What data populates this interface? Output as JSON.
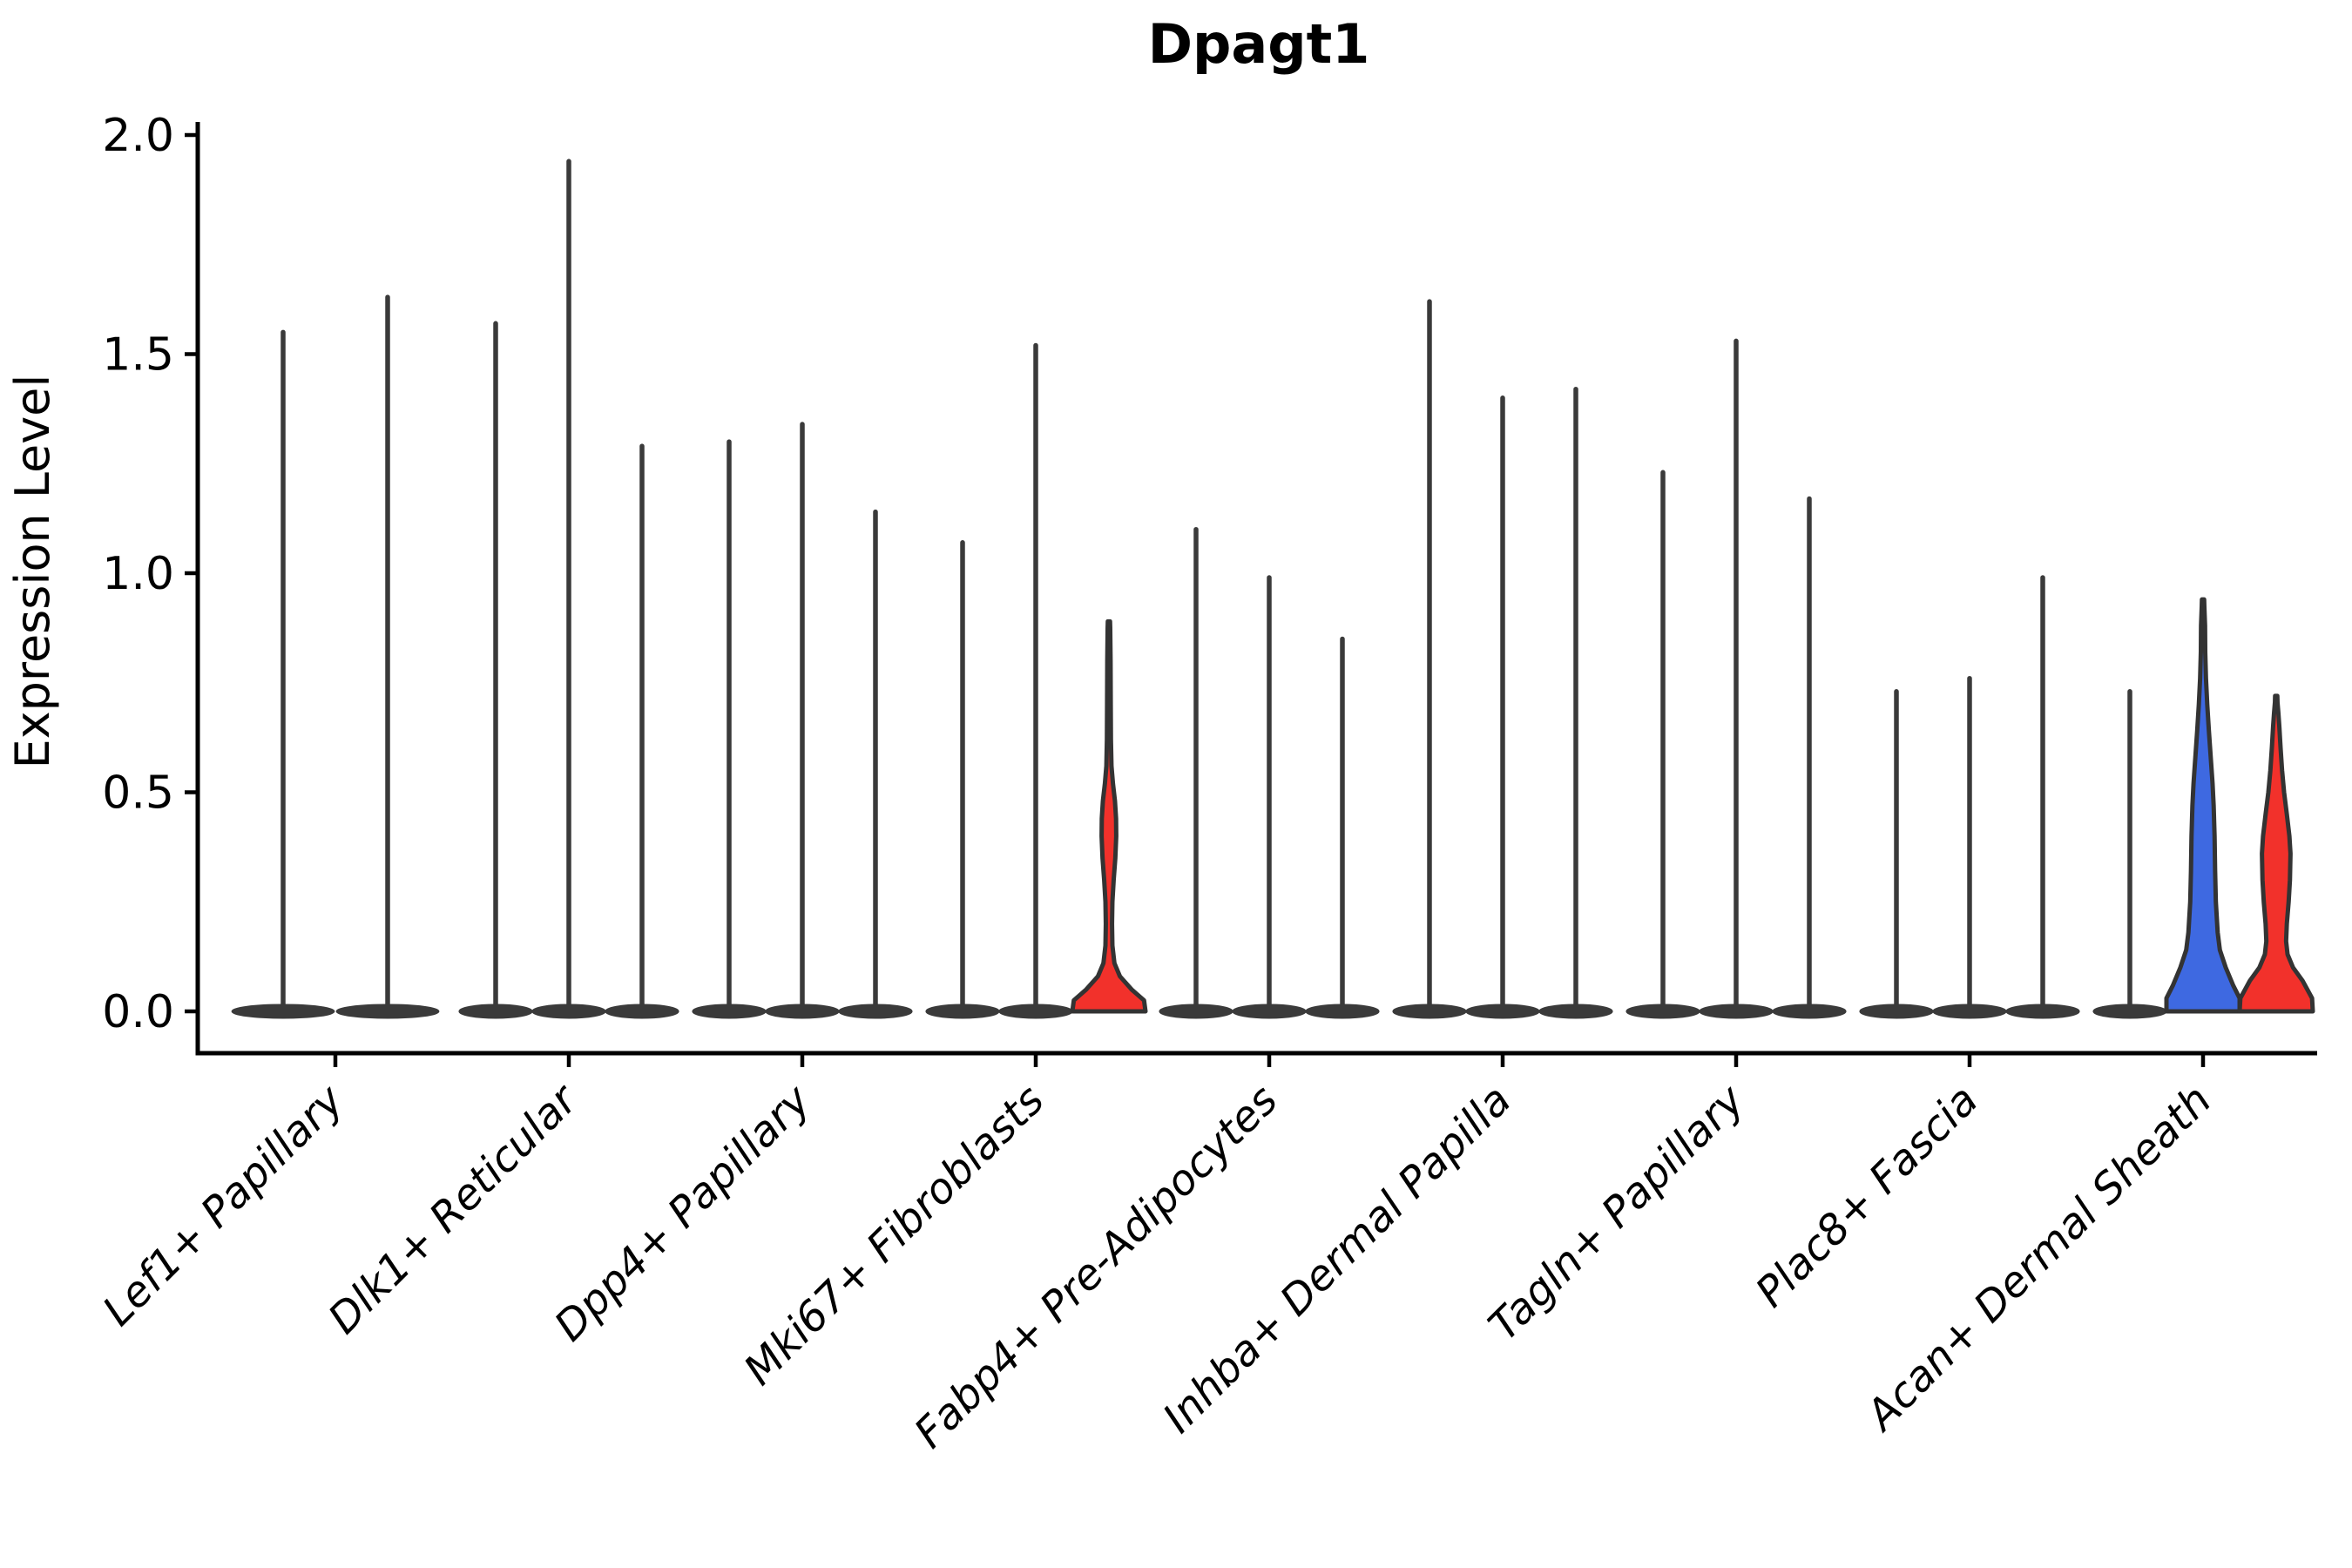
{
  "chart_data": {
    "type": "violin",
    "title": "Dpagt1",
    "ylabel": "Expression Level",
    "xlabel": "",
    "ylim": [
      0,
      2.0
    ],
    "yticks": [
      "0.0",
      "0.5",
      "1.0",
      "1.5",
      "2.0"
    ],
    "ytick_values": [
      0,
      0.5,
      1.0,
      1.5,
      2.0
    ],
    "grid": "off",
    "legend": "none",
    "categories": [
      "Lef1+ Papillary",
      "Dlk1+ Reticular",
      "Dpp4+ Papillary",
      "Mki67+ Fibroblasts",
      "Fabp4+ Pre-Adipocytes",
      "Inhba+ Dermal Papilla",
      "Tagln+ Papillary",
      "Plac8+ Fascia",
      "Acan+ Dermal Sheath"
    ],
    "colors": {
      "needle": "#3a3a3a",
      "edge": "#333333",
      "blue_fill": "#3e69e1",
      "red_fill": "#f2312b",
      "axis": "#000000"
    },
    "groups": [
      {
        "category": "Lef1+ Papillary",
        "violins": [
          {
            "max": 1.55,
            "style": "needle"
          },
          {
            "max": 1.63,
            "style": "needle"
          }
        ]
      },
      {
        "category": "Dlk1+ Reticular",
        "violins": [
          {
            "max": 1.57,
            "style": "needle"
          },
          {
            "max": 1.94,
            "style": "needle"
          },
          {
            "max": 1.29,
            "style": "needle"
          }
        ]
      },
      {
        "category": "Dpp4+ Papillary",
        "violins": [
          {
            "max": 1.3,
            "style": "needle"
          },
          {
            "max": 1.34,
            "style": "needle"
          },
          {
            "max": 1.14,
            "style": "needle"
          }
        ]
      },
      {
        "category": "Mki67+ Fibroblasts",
        "violins": [
          {
            "max": 1.07,
            "style": "needle"
          },
          {
            "max": 1.52,
            "style": "needle"
          },
          {
            "max": 0.89,
            "style": "filled",
            "fill": "red_fill",
            "profile": [
              [
                0,
                1.0
              ],
              [
                0.025,
                0.96
              ],
              [
                0.05,
                0.62
              ],
              [
                0.08,
                0.3
              ],
              [
                0.11,
                0.15
              ],
              [
                0.15,
                0.095
              ],
              [
                0.2,
                0.085
              ],
              [
                0.25,
                0.095
              ],
              [
                0.3,
                0.13
              ],
              [
                0.35,
                0.175
              ],
              [
                0.4,
                0.2
              ],
              [
                0.44,
                0.195
              ],
              [
                0.48,
                0.165
              ],
              [
                0.52,
                0.11
              ],
              [
                0.56,
                0.07
              ],
              [
                0.62,
                0.055
              ],
              [
                0.7,
                0.05
              ],
              [
                0.8,
                0.045
              ]
            ]
          }
        ]
      },
      {
        "category": "Fabp4+ Pre-Adipocytes",
        "violins": [
          {
            "max": 1.1,
            "style": "needle"
          },
          {
            "max": 0.99,
            "style": "needle"
          },
          {
            "max": 0.85,
            "style": "needle"
          }
        ]
      },
      {
        "category": "Inhba+ Dermal Papilla",
        "violins": [
          {
            "max": 1.62,
            "style": "needle"
          },
          {
            "max": 1.4,
            "style": "needle"
          },
          {
            "max": 1.42,
            "style": "needle"
          }
        ]
      },
      {
        "category": "Tagln+ Papillary",
        "violins": [
          {
            "max": 1.23,
            "style": "needle"
          },
          {
            "max": 1.53,
            "style": "needle"
          },
          {
            "max": 1.17,
            "style": "needle"
          }
        ]
      },
      {
        "category": "Plac8+ Fascia",
        "violins": [
          {
            "max": 0.73,
            "style": "needle"
          },
          {
            "max": 0.76,
            "style": "needle"
          },
          {
            "max": 0.99,
            "style": "needle"
          }
        ]
      },
      {
        "category": "Acan+ Dermal Sheath",
        "violins": [
          {
            "max": 0.73,
            "style": "needle"
          },
          {
            "max": 0.94,
            "style": "filled",
            "fill": "blue_fill",
            "profile": [
              [
                0,
                1.0
              ],
              [
                0.03,
                1.0
              ],
              [
                0.06,
                0.82
              ],
              [
                0.1,
                0.62
              ],
              [
                0.14,
                0.46
              ],
              [
                0.18,
                0.4
              ],
              [
                0.25,
                0.35
              ],
              [
                0.32,
                0.33
              ],
              [
                0.4,
                0.315
              ],
              [
                0.47,
                0.29
              ],
              [
                0.52,
                0.26
              ],
              [
                0.58,
                0.21
              ],
              [
                0.64,
                0.16
              ],
              [
                0.7,
                0.115
              ],
              [
                0.76,
                0.08
              ],
              [
                0.82,
                0.06
              ],
              [
                0.88,
                0.055
              ]
            ]
          },
          {
            "max": 0.72,
            "style": "filled",
            "fill": "red_fill",
            "profile": [
              [
                0,
                1.0
              ],
              [
                0.03,
                0.98
              ],
              [
                0.07,
                0.72
              ],
              [
                0.1,
                0.46
              ],
              [
                0.13,
                0.31
              ],
              [
                0.16,
                0.27
              ],
              [
                0.2,
                0.29
              ],
              [
                0.25,
                0.34
              ],
              [
                0.3,
                0.375
              ],
              [
                0.36,
                0.39
              ],
              [
                0.4,
                0.36
              ],
              [
                0.45,
                0.29
              ],
              [
                0.5,
                0.215
              ],
              [
                0.55,
                0.16
              ],
              [
                0.6,
                0.12
              ],
              [
                0.65,
                0.085
              ],
              [
                0.68,
                0.06
              ]
            ]
          }
        ]
      }
    ]
  }
}
